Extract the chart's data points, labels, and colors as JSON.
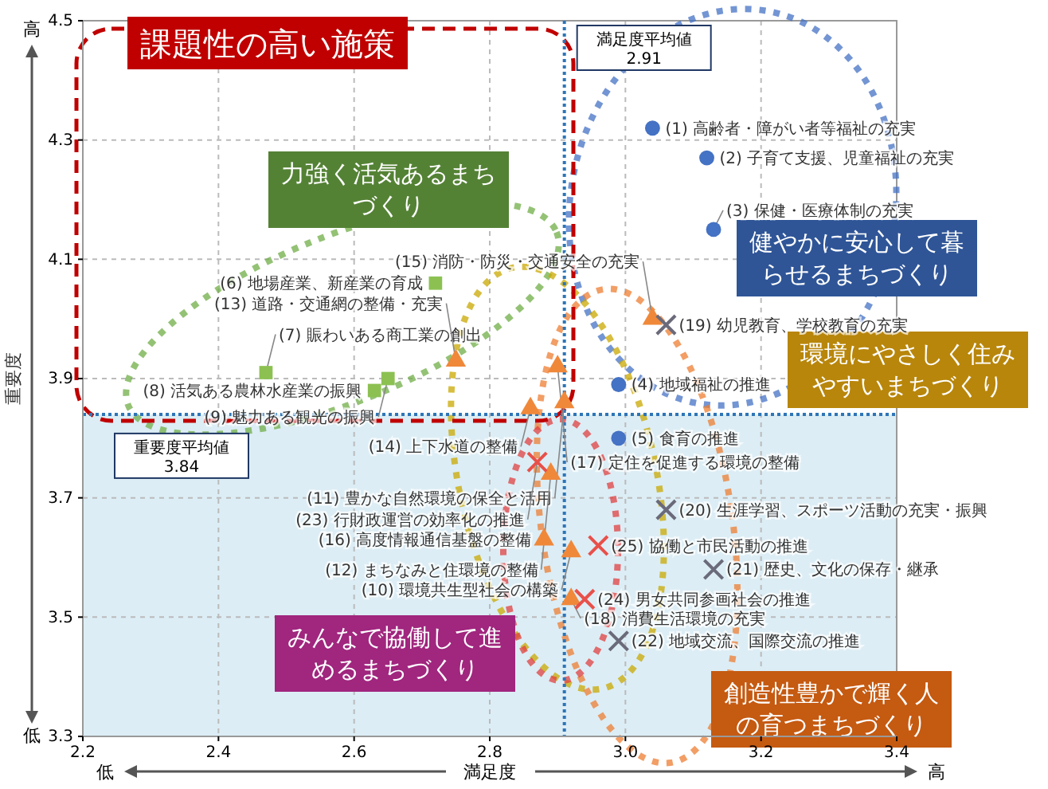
{
  "chart_data": {
    "type": "scatter",
    "xlabel": "満足度",
    "ylabel": "重要度",
    "xlim": [
      2.2,
      3.4
    ],
    "ylim": [
      3.3,
      4.5
    ],
    "xticks": [
      2.2,
      2.4,
      2.6,
      2.8,
      {
        "value": 3,
        "label": "3.0"
      },
      3.2,
      3.4
    ],
    "yticks": [
      3.3,
      3.5,
      3.7,
      3.9,
      4.1,
      4.3,
      4.5
    ],
    "grid": true,
    "bands": [
      {
        "axis": "y",
        "from": 3.3,
        "to": 3.84,
        "color": "#dcedf5"
      }
    ],
    "ref_lines": [
      {
        "axis": "x",
        "value": 2.91,
        "label": "満足度平均値 2.91",
        "color": "#2e75b6",
        "line_style": "dotted"
      },
      {
        "axis": "y",
        "value": 3.84,
        "label": "重要度平均値 3.84",
        "color": "#2e75b6",
        "line_style": "dotted"
      }
    ],
    "series": [
      {
        "color": "#4472c4",
        "marker": "circle",
        "x": [
          3.04,
          3.12,
          3.13,
          2.99,
          2.99
        ],
        "values": [
          4.32,
          4.27,
          4.15,
          3.89,
          3.8
        ]
      },
      {
        "color": "#8cc152",
        "marker": "square",
        "x": [
          2.72,
          2.47,
          2.63,
          2.65
        ],
        "values": [
          4.06,
          3.91,
          3.88,
          3.9
        ]
      },
      {
        "color": "#f0883a",
        "marker": "triangle",
        "x": [
          2.75,
          2.86,
          2.9,
          3.04,
          2.91,
          2.89,
          2.88,
          2.92,
          2.92
        ],
        "values": [
          3.93,
          3.85,
          3.92,
          4.0,
          3.86,
          3.74,
          3.63,
          3.61,
          3.53
        ]
      },
      {
        "color": "#e8504a",
        "marker": "cross",
        "x": [
          2.87,
          2.96,
          2.94
        ],
        "values": [
          3.76,
          3.62,
          3.53
        ]
      },
      {
        "color": "#6a6a7a",
        "marker": "cross",
        "x": [
          3.06,
          3.06,
          3.13,
          2.99
        ],
        "values": [
          3.99,
          3.68,
          3.58,
          3.46
        ]
      }
    ],
    "annotations": [
      {
        "text": "(1) 高齢者・障がい者等福祉の充実",
        "x": 3.04,
        "y": 4.32
      },
      {
        "text": "(2) 子育て支援、児童福祉の充実",
        "x": 3.12,
        "y": 4.27
      },
      {
        "text": "(3) 保健・医療体制の充実",
        "x": 3.13,
        "y": 4.15
      },
      {
        "text": "(4) 地域福祉の推進",
        "x": 2.99,
        "y": 3.89
      },
      {
        "text": "(5) 食育の推進",
        "x": 2.99,
        "y": 3.8
      },
      {
        "text": "(6) 地場産業、新産業の育成",
        "x": 2.72,
        "y": 4.06
      },
      {
        "text": "(7) 賑わいある商工業の創出",
        "x": 2.47,
        "y": 3.91
      },
      {
        "text": "(8) 活気ある農林水産業の振興",
        "x": 2.63,
        "y": 3.88
      },
      {
        "text": "(9) 魅力ある観光の振興",
        "x": 2.65,
        "y": 3.9
      },
      {
        "text": "(13) 道路・交通網の整備・充実",
        "x": 2.75,
        "y": 3.93
      },
      {
        "text": "(14) 上下水道の整備",
        "x": 2.86,
        "y": 3.85
      },
      {
        "text": "(17) 定住を促進する環境の整備",
        "x": 2.9,
        "y": 3.92
      },
      {
        "text": "(15) 消防・防災・交通安全の充実",
        "x": 3.04,
        "y": 4.0
      },
      {
        "text": "(11) 豊かな自然環境の保全と活用",
        "x": 2.91,
        "y": 3.86
      },
      {
        "text": "(12) まちなみと住環境の整備",
        "x": 2.89,
        "y": 3.74
      },
      {
        "text": "(16) 高度情報通信基盤の整備",
        "x": 2.88,
        "y": 3.63
      },
      {
        "text": "(10) 環境共生型社会の構築",
        "x": 2.92,
        "y": 3.61
      },
      {
        "text": "(18) 消費生活環境の充実",
        "x": 2.92,
        "y": 3.53
      },
      {
        "text": "(23) 行財政運営の効率化の推進",
        "x": 2.87,
        "y": 3.76
      },
      {
        "text": "(25) 協働と市民活動の推進",
        "x": 2.96,
        "y": 3.62
      },
      {
        "text": "(24) 男女共同参画社会の推進",
        "x": 2.94,
        "y": 3.53
      },
      {
        "text": "(19) 幼児教育、学校教育の充実",
        "x": 3.06,
        "y": 3.99
      },
      {
        "text": "(20) 生涯学習、スポーツ活動の充実・振興",
        "x": 3.06,
        "y": 3.68
      },
      {
        "text": "(21) 歴史、文化の保存・継承",
        "x": 3.13,
        "y": 3.58
      },
      {
        "text": "(22) 地域交流、国際交流の推進",
        "x": 2.99,
        "y": 3.46
      },
      "課題性の高い施策",
      "力強く活気あるまちづくり",
      "健やかに安心して暮らせるまちづくり",
      "環境にやさしく住みやすいまちづくり",
      "みんなで協働して進めるまちづくり",
      "創造性豊かで輝く人の育つまちづくり",
      "高",
      "低",
      "低",
      "高"
    ]
  }
}
